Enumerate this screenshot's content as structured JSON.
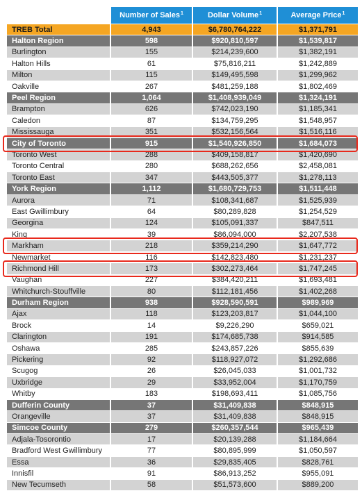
{
  "headers": {
    "col0": "",
    "sales": "Number of Sales",
    "sales_sup": "1",
    "volume": "Dollar Volume",
    "volume_sup": "1",
    "price": "Average Price",
    "price_sup": "1"
  },
  "rows": [
    {
      "name": "TREB Total",
      "sales": "4,943",
      "volume": "$6,780,764,222",
      "price": "$1,371,791",
      "type": "total"
    },
    {
      "name": "Halton Region",
      "sales": "598",
      "volume": "$920,810,597",
      "price": "$1,539,817",
      "type": "region"
    },
    {
      "name": "Burlington",
      "sales": "155",
      "volume": "$214,239,600",
      "price": "$1,382,191",
      "type": "sub"
    },
    {
      "name": "Halton Hills",
      "sales": "61",
      "volume": "$75,816,211",
      "price": "$1,242,889",
      "type": "sub"
    },
    {
      "name": "Milton",
      "sales": "115",
      "volume": "$149,495,598",
      "price": "$1,299,962",
      "type": "sub"
    },
    {
      "name": "Oakville",
      "sales": "267",
      "volume": "$481,259,188",
      "price": "$1,802,469",
      "type": "sub"
    },
    {
      "name": "Peel Region",
      "sales": "1,064",
      "volume": "$1,408,939,049",
      "price": "$1,324,191",
      "type": "region"
    },
    {
      "name": "Brampton",
      "sales": "626",
      "volume": "$742,023,190",
      "price": "$1,185,341",
      "type": "sub"
    },
    {
      "name": "Caledon",
      "sales": "87",
      "volume": "$134,759,295",
      "price": "$1,548,957",
      "type": "sub"
    },
    {
      "name": "Mississauga",
      "sales": "351",
      "volume": "$532,156,564",
      "price": "$1,516,116",
      "type": "sub"
    },
    {
      "name": "City of Toronto",
      "sales": "915",
      "volume": "$1,540,926,850",
      "price": "$1,684,073",
      "type": "region"
    },
    {
      "name": "Toronto West",
      "sales": "288",
      "volume": "$409,158,817",
      "price": "$1,420,690",
      "type": "sub"
    },
    {
      "name": "Toronto Central",
      "sales": "280",
      "volume": "$688,262,656",
      "price": "$2,458,081",
      "type": "sub"
    },
    {
      "name": "Toronto East",
      "sales": "347",
      "volume": "$443,505,377",
      "price": "$1,278,113",
      "type": "sub"
    },
    {
      "name": "York Region",
      "sales": "1,112",
      "volume": "$1,680,729,753",
      "price": "$1,511,448",
      "type": "region"
    },
    {
      "name": "Aurora",
      "sales": "71",
      "volume": "$108,341,687",
      "price": "$1,525,939",
      "type": "sub"
    },
    {
      "name": "East Gwillimbury",
      "sales": "64",
      "volume": "$80,289,828",
      "price": "$1,254,529",
      "type": "sub"
    },
    {
      "name": "Georgina",
      "sales": "124",
      "volume": "$105,091,337",
      "price": "$847,511",
      "type": "sub"
    },
    {
      "name": "King",
      "sales": "39",
      "volume": "$86,094,000",
      "price": "$2,207,538",
      "type": "sub"
    },
    {
      "name": "Markham",
      "sales": "218",
      "volume": "$359,214,290",
      "price": "$1,647,772",
      "type": "sub"
    },
    {
      "name": "Newmarket",
      "sales": "116",
      "volume": "$142,823,480",
      "price": "$1,231,237",
      "type": "sub"
    },
    {
      "name": "Richmond Hill",
      "sales": "173",
      "volume": "$302,273,464",
      "price": "$1,747,245",
      "type": "sub"
    },
    {
      "name": "Vaughan",
      "sales": "227",
      "volume": "$384,420,211",
      "price": "$1,693,481",
      "type": "sub"
    },
    {
      "name": "Whitchurch-Stouffville",
      "sales": "80",
      "volume": "$112,181,456",
      "price": "$1,402,268",
      "type": "sub"
    },
    {
      "name": "Durham Region",
      "sales": "938",
      "volume": "$928,590,591",
      "price": "$989,969",
      "type": "region"
    },
    {
      "name": "Ajax",
      "sales": "118",
      "volume": "$123,203,817",
      "price": "$1,044,100",
      "type": "sub"
    },
    {
      "name": "Brock",
      "sales": "14",
      "volume": "$9,226,290",
      "price": "$659,021",
      "type": "sub"
    },
    {
      "name": "Clarington",
      "sales": "191",
      "volume": "$174,685,738",
      "price": "$914,585",
      "type": "sub"
    },
    {
      "name": "Oshawa",
      "sales": "285",
      "volume": "$243,857,226",
      "price": "$855,639",
      "type": "sub"
    },
    {
      "name": "Pickering",
      "sales": "92",
      "volume": "$118,927,072",
      "price": "$1,292,686",
      "type": "sub"
    },
    {
      "name": "Scugog",
      "sales": "26",
      "volume": "$26,045,033",
      "price": "$1,001,732",
      "type": "sub"
    },
    {
      "name": "Uxbridge",
      "sales": "29",
      "volume": "$33,952,004",
      "price": "$1,170,759",
      "type": "sub"
    },
    {
      "name": "Whitby",
      "sales": "183",
      "volume": "$198,693,411",
      "price": "$1,085,756",
      "type": "sub"
    },
    {
      "name": "Dufferin County",
      "sales": "37",
      "volume": "$31,409,838",
      "price": "$848,915",
      "type": "region"
    },
    {
      "name": "Orangeville",
      "sales": "37",
      "volume": "$31,409,838",
      "price": "$848,915",
      "type": "sub"
    },
    {
      "name": "Simcoe County",
      "sales": "279",
      "volume": "$260,357,544",
      "price": "$965,439",
      "type": "region"
    },
    {
      "name": "Adjala-Tosorontio",
      "sales": "17",
      "volume": "$20,139,288",
      "price": "$1,184,664",
      "type": "sub"
    },
    {
      "name": "Bradford West Gwillimbury",
      "sales": "77",
      "volume": "$80,895,999",
      "price": "$1,050,597",
      "type": "sub"
    },
    {
      "name": "Essa",
      "sales": "36",
      "volume": "$29,835,405",
      "price": "$828,761",
      "type": "sub"
    },
    {
      "name": "Innisfil",
      "sales": "91",
      "volume": "$86,913,252",
      "price": "$955,091",
      "type": "sub"
    },
    {
      "name": "New Tecumseth",
      "sales": "58",
      "volume": "$51,573,600",
      "price": "$889,200",
      "type": "sub"
    }
  ],
  "highlighted_rows": [
    "City of Toronto",
    "Markham",
    "Richmond Hill"
  ],
  "colors": {
    "header_blue": "#1f8fd6",
    "total_orange": "#f5a623",
    "region_gray": "#767676",
    "stripe_gray": "#d3d3d3",
    "highlight_red": "#e8291c"
  }
}
